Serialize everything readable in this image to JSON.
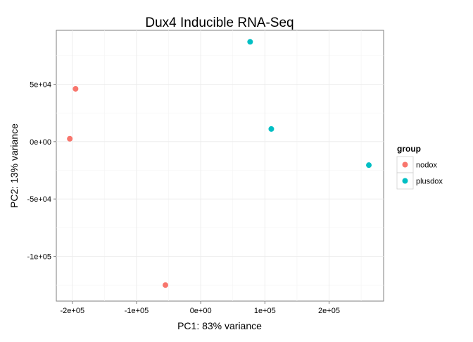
{
  "chart_data": {
    "type": "scatter",
    "title": "Dux4 Inducible RNA-Seq",
    "xlabel": "PC1: 83% variance",
    "ylabel": "PC2: 13% variance",
    "xlim": [
      -225000,
      285000
    ],
    "ylim": [
      -139000,
      97000
    ],
    "x_ticks": [
      -200000,
      -100000,
      0,
      100000,
      200000
    ],
    "x_tick_labels": [
      "-2e+05",
      "-1e+05",
      "0e+00",
      "1e+05",
      "2e+05"
    ],
    "y_ticks": [
      -100000,
      -50000,
      0,
      50000
    ],
    "y_tick_labels": [
      "-1e+05",
      "-5e+04",
      "0e+00",
      "5e+04"
    ],
    "grid": true,
    "legend": {
      "title": "group",
      "placement": "right"
    },
    "series": [
      {
        "name": "nodox",
        "color": "#F8766D",
        "points": [
          {
            "x": -195000,
            "y": 46000
          },
          {
            "x": -204000,
            "y": 2500
          },
          {
            "x": -55000,
            "y": -125000
          }
        ]
      },
      {
        "name": "plusdox",
        "color": "#00BFC4",
        "points": [
          {
            "x": 77000,
            "y": 87000
          },
          {
            "x": 110000,
            "y": 11000
          },
          {
            "x": 262000,
            "y": -20500
          }
        ]
      }
    ]
  }
}
